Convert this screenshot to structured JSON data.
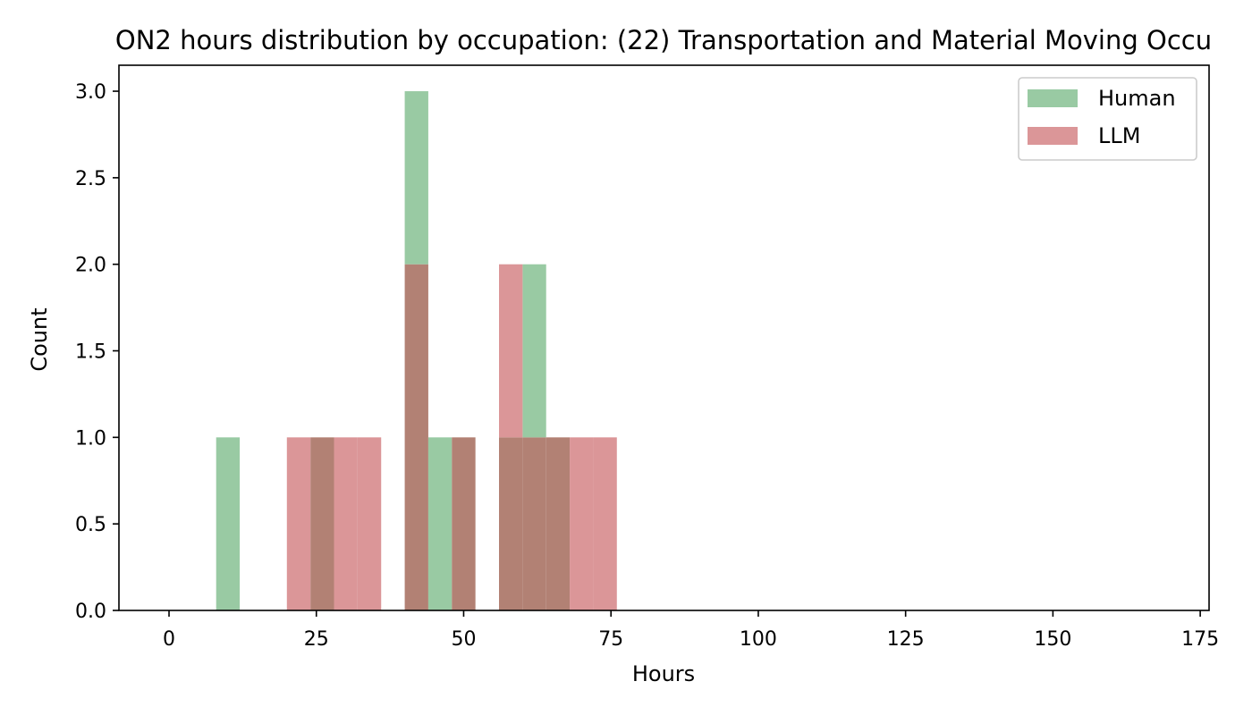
{
  "chart_data": {
    "type": "bar",
    "subtype": "overlaid-histogram",
    "title": "ON2 hours distribution by occupation: (22) Transportation and Material Moving Occu",
    "xlabel": "Hours",
    "ylabel": "Count",
    "xlim": [
      -8.5,
      176.5
    ],
    "ylim": [
      0,
      3.15
    ],
    "bin_width": 4,
    "xticks": [
      0,
      25,
      50,
      75,
      100,
      125,
      150,
      175
    ],
    "xtick_labels": [
      "0",
      "25",
      "50",
      "75",
      "100",
      "125",
      "150",
      "175"
    ],
    "yticks": [
      0,
      0.5,
      1,
      1.5,
      2,
      2.5,
      3
    ],
    "ytick_labels": [
      "0.0",
      "0.5",
      "1.0",
      "1.5",
      "2.0",
      "2.5",
      "3.0"
    ],
    "grid": false,
    "legend_position": "upper right",
    "series": [
      {
        "name": "Human",
        "color": "#99caa3",
        "bins": [
          {
            "x0": 8,
            "x1": 12,
            "count": 1
          },
          {
            "x0": 24,
            "x1": 28,
            "count": 1
          },
          {
            "x0": 40,
            "x1": 44,
            "count": 3
          },
          {
            "x0": 44,
            "x1": 48,
            "count": 1
          },
          {
            "x0": 48,
            "x1": 52,
            "count": 1
          },
          {
            "x0": 56,
            "x1": 60,
            "count": 1
          },
          {
            "x0": 60,
            "x1": 64,
            "count": 2
          },
          {
            "x0": 64,
            "x1": 68,
            "count": 1
          }
        ]
      },
      {
        "name": "LLM",
        "color": "#db9698",
        "bins": [
          {
            "x0": 20,
            "x1": 24,
            "count": 1
          },
          {
            "x0": 24,
            "x1": 28,
            "count": 1
          },
          {
            "x0": 28,
            "x1": 32,
            "count": 1
          },
          {
            "x0": 32,
            "x1": 36,
            "count": 1
          },
          {
            "x0": 40,
            "x1": 44,
            "count": 2
          },
          {
            "x0": 48,
            "x1": 52,
            "count": 1
          },
          {
            "x0": 56,
            "x1": 60,
            "count": 2
          },
          {
            "x0": 60,
            "x1": 64,
            "count": 1
          },
          {
            "x0": 64,
            "x1": 68,
            "count": 1
          },
          {
            "x0": 68,
            "x1": 72,
            "count": 1
          },
          {
            "x0": 72,
            "x1": 76,
            "count": 1
          }
        ]
      }
    ],
    "overlap_color": "#b28174"
  }
}
